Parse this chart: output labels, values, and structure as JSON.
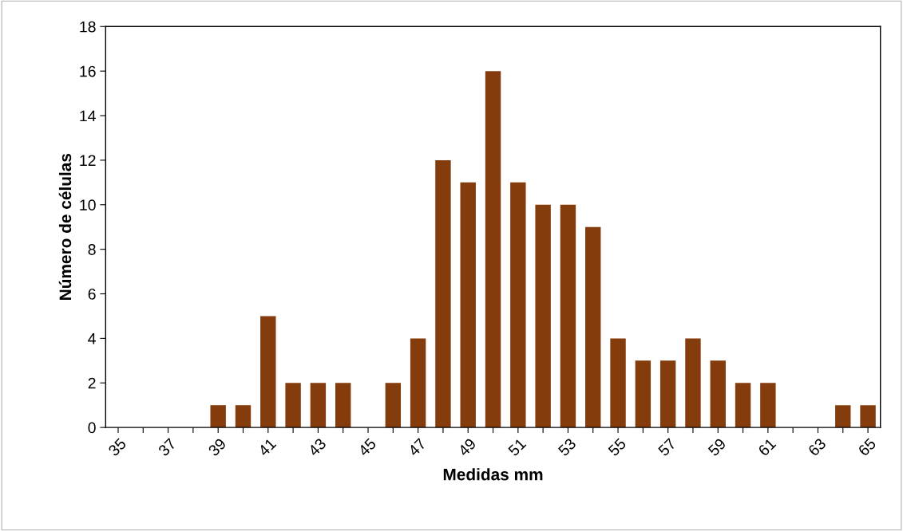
{
  "chart_data": {
    "type": "bar",
    "xlabel": "Medidas mm",
    "ylabel": "Número de células",
    "categories": [
      "35",
      null,
      "37",
      null,
      "39",
      null,
      "41",
      null,
      "43",
      null,
      "45",
      null,
      "47",
      null,
      "49",
      null,
      "51",
      null,
      "53",
      null,
      "55",
      null,
      "57",
      null,
      "59",
      null,
      "61",
      null,
      "63",
      null,
      "65"
    ],
    "values": [
      0,
      0,
      0,
      0,
      1,
      1,
      5,
      2,
      2,
      2,
      0,
      2,
      4,
      12,
      11,
      16,
      11,
      10,
      10,
      9,
      4,
      3,
      3,
      4,
      3,
      2,
      2,
      0,
      0,
      1,
      1
    ],
    "color": "#843c0c",
    "ylim": [
      0,
      18
    ],
    "yticks": [
      0,
      2,
      4,
      6,
      8,
      10,
      12,
      14,
      16,
      18
    ],
    "grid": false,
    "legend": false
  }
}
